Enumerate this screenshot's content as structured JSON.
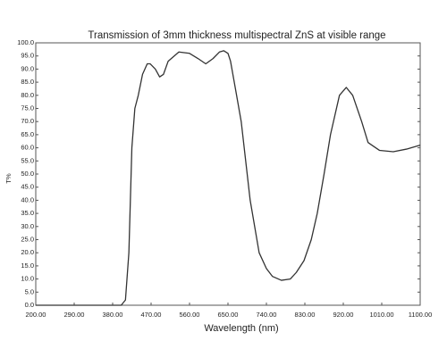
{
  "chart_data": {
    "type": "line",
    "title": "Transmission  of 3mm thickness multispectral ZnS at visible range",
    "x_label": "Wavelength (nm)",
    "y_label": "T%",
    "xlim": [
      200,
      1100
    ],
    "ylim": [
      0,
      100
    ],
    "xticks": [
      {
        "value": 200,
        "label": "200.00"
      },
      {
        "value": 290,
        "label": "290.00"
      },
      {
        "value": 380,
        "label": "380.00"
      },
      {
        "value": 470,
        "label": "470.00"
      },
      {
        "value": 560,
        "label": "560.00"
      },
      {
        "value": 650,
        "label": "650.00"
      },
      {
        "value": 740,
        "label": "740.00"
      },
      {
        "value": 830,
        "label": "830.00"
      },
      {
        "value": 920,
        "label": "920.00"
      },
      {
        "value": 1010,
        "label": "1010.00"
      },
      {
        "value": 1100,
        "label": "1100.00"
      }
    ],
    "yticks": [
      {
        "value": 0,
        "label": "0.0"
      },
      {
        "value": 5,
        "label": "5.0"
      },
      {
        "value": 10,
        "label": "10.0"
      },
      {
        "value": 15,
        "label": "15.0"
      },
      {
        "value": 20,
        "label": "20.0"
      },
      {
        "value": 25,
        "label": "25.0"
      },
      {
        "value": 30,
        "label": "30.0"
      },
      {
        "value": 35,
        "label": "35.0"
      },
      {
        "value": 40,
        "label": "40.0"
      },
      {
        "value": 45,
        "label": "45.0"
      },
      {
        "value": 50,
        "label": "50.0"
      },
      {
        "value": 55,
        "label": "55.0"
      },
      {
        "value": 60,
        "label": "60.0"
      },
      {
        "value": 65,
        "label": "65.0"
      },
      {
        "value": 70,
        "label": "70.0"
      },
      {
        "value": 75,
        "label": "75.0"
      },
      {
        "value": 80,
        "label": "80.0"
      },
      {
        "value": 85,
        "label": "85.0"
      },
      {
        "value": 90,
        "label": "90.0"
      },
      {
        "value": 95,
        "label": "95.0"
      },
      {
        "value": 100,
        "label": "100.0"
      }
    ],
    "grid": false,
    "series": [
      {
        "color": "#333333",
        "x": [
          200,
          300,
          400,
          410,
          418,
          425,
          432,
          440,
          450,
          461,
          468,
          480,
          490,
          499,
          510,
          535,
          560,
          580,
          598,
          615,
          630,
          640,
          650,
          656,
          668,
          681,
          702,
          723,
          740,
          754,
          775,
          796,
          810,
          828,
          845,
          859,
          875,
          890,
          911,
          927,
          942,
          963,
          978,
          987,
          1005,
          1037,
          1068,
          1100
        ],
        "values": [
          0,
          0,
          0,
          2,
          20,
          60,
          75,
          80,
          88,
          92,
          92,
          90,
          87,
          88,
          93,
          96.5,
          96,
          94,
          92,
          94,
          96.5,
          97,
          96,
          93,
          82,
          70,
          40,
          20,
          14,
          11,
          9.5,
          10,
          12.5,
          17,
          25,
          35,
          50,
          65,
          80,
          83,
          80,
          70,
          62,
          61,
          59,
          58.5,
          59.5,
          61
        ]
      }
    ]
  }
}
